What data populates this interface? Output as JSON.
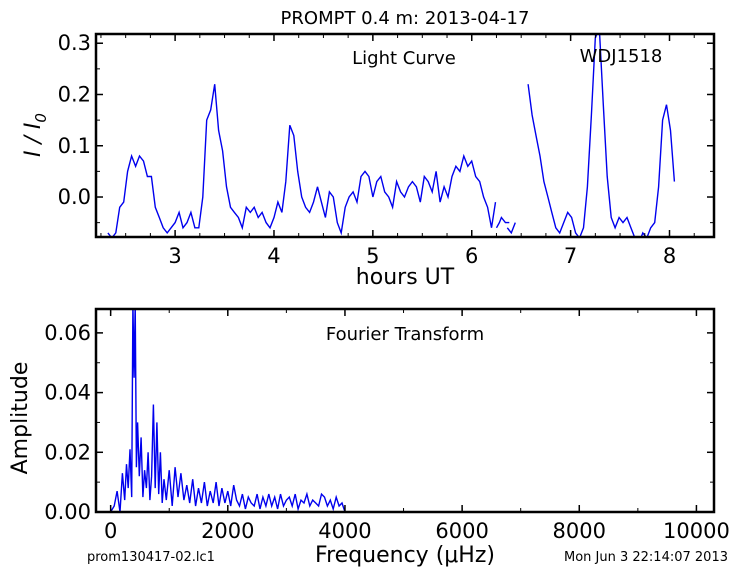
{
  "header": {
    "title": "PROMPT 0.4 m:  2013-04-17"
  },
  "footer": {
    "left": "prom130417-02.lc1",
    "right": "Mon Jun  3 22:14:07 2013"
  },
  "chart_data": [
    {
      "type": "line",
      "annotation": "Light Curve",
      "target": "WDJ1518",
      "xlabel": "hours UT",
      "ylabel": "I / I",
      "ylabel_sub": "0",
      "xlim": [
        2.2,
        8.45
      ],
      "ylim": [
        -0.078,
        0.318
      ],
      "xticks": [
        3,
        4,
        5,
        6,
        7,
        8
      ],
      "yticks": [
        0.0,
        0.1,
        0.2,
        0.3
      ],
      "ytick_labels": [
        "0.0",
        "0.1",
        "0.2",
        "0.3"
      ],
      "color": "#0000ee",
      "series": [
        {
          "x": [
            2.32,
            2.36,
            2.4,
            2.44,
            2.48,
            2.52,
            2.56,
            2.6,
            2.64,
            2.68,
            2.72,
            2.76,
            2.8,
            2.84,
            2.88,
            2.92,
            2.96,
            3.0,
            3.04,
            3.08,
            3.12,
            3.16,
            3.2,
            3.24,
            3.28,
            3.32,
            3.36,
            3.4,
            3.44,
            3.48,
            3.52,
            3.56,
            3.6,
            3.64,
            3.68,
            3.72,
            3.76,
            3.8,
            3.84,
            3.88,
            3.92,
            3.96,
            4.0,
            4.04,
            4.08,
            4.12,
            4.16,
            4.2,
            4.24,
            4.28,
            4.32,
            4.36,
            4.4,
            4.44,
            4.48,
            4.52,
            4.56,
            4.6,
            4.64,
            4.68,
            4.72,
            4.76,
            4.8,
            4.84,
            4.88,
            4.92,
            4.96,
            5.0,
            5.04,
            5.08,
            5.12,
            5.16,
            5.2,
            5.24,
            5.28,
            5.32,
            5.36,
            5.4,
            5.44,
            5.48,
            5.52,
            5.56,
            5.6,
            5.64,
            5.68,
            5.72,
            5.76,
            5.8,
            5.84,
            5.88,
            5.92,
            5.96,
            6.0,
            6.04,
            6.08,
            6.12,
            6.16,
            6.2,
            6.24
          ],
          "y": [
            -0.07,
            -0.08,
            -0.07,
            -0.02,
            -0.01,
            0.05,
            0.08,
            0.06,
            0.08,
            0.07,
            0.04,
            0.04,
            -0.02,
            -0.04,
            -0.06,
            -0.07,
            -0.06,
            -0.05,
            -0.03,
            -0.06,
            -0.05,
            -0.03,
            -0.06,
            -0.06,
            0.0,
            0.15,
            0.17,
            0.22,
            0.13,
            0.09,
            0.02,
            -0.02,
            -0.03,
            -0.04,
            -0.06,
            -0.02,
            -0.03,
            -0.02,
            -0.04,
            -0.03,
            -0.05,
            -0.06,
            -0.04,
            -0.01,
            -0.03,
            0.03,
            0.14,
            0.12,
            0.05,
            0.0,
            -0.02,
            -0.03,
            -0.01,
            0.02,
            -0.01,
            -0.04,
            0.01,
            0.0,
            -0.05,
            -0.07,
            -0.02,
            0.0,
            0.01,
            -0.01,
            0.04,
            0.05,
            0.04,
            0.0,
            0.03,
            0.04,
            0.01,
            0.0,
            -0.02,
            0.03,
            0.01,
            0.0,
            0.02,
            0.03,
            0.02,
            -0.01,
            0.04,
            0.03,
            0.01,
            0.05,
            -0.01,
            0.02,
            0.0,
            0.04,
            0.06,
            0.05,
            0.08,
            0.06,
            0.07,
            0.04,
            0.03,
            0.0,
            -0.02,
            -0.06,
            -0.01
          ]
        },
        {
          "x": [
            6.25,
            6.28,
            6.3,
            6.34,
            6.38
          ],
          "y": [
            -0.06,
            -0.05,
            -0.04,
            -0.05,
            -0.05
          ]
        },
        {
          "x": [
            6.36,
            6.4,
            6.44
          ],
          "y": [
            -0.06,
            -0.07,
            -0.05
          ]
        },
        {
          "x": [
            6.57,
            6.61,
            6.65,
            6.69,
            6.73,
            6.77,
            6.81,
            6.85,
            6.89,
            6.93,
            6.97,
            7.01,
            7.05,
            7.09,
            7.13,
            7.17,
            7.21,
            7.25,
            7.29,
            7.33,
            7.37,
            7.41,
            7.45,
            7.49,
            7.53,
            7.57,
            7.61,
            7.65,
            7.69,
            7.73,
            7.77,
            7.81,
            7.85,
            7.89,
            7.93,
            7.97,
            8.01,
            8.05
          ],
          "y": [
            0.22,
            0.16,
            0.12,
            0.08,
            0.03,
            0.0,
            -0.03,
            -0.06,
            -0.07,
            -0.05,
            -0.03,
            -0.04,
            -0.07,
            -0.08,
            -0.06,
            0.02,
            0.16,
            0.31,
            0.33,
            0.18,
            0.04,
            -0.04,
            -0.06,
            -0.04,
            -0.05,
            -0.04,
            -0.06,
            -0.08,
            -0.09,
            -0.07,
            -0.08,
            -0.06,
            -0.05,
            0.02,
            0.15,
            0.18,
            0.13,
            0.03
          ]
        }
      ]
    },
    {
      "type": "line",
      "annotation": "Fourier Transform",
      "xlabel": "Frequency (μHz)",
      "ylabel": "Amplitude",
      "xlim": [
        -250,
        10300
      ],
      "ylim": [
        0,
        0.068
      ],
      "xticks": [
        0,
        2000,
        4000,
        6000,
        8000,
        10000
      ],
      "yticks": [
        0.0,
        0.02,
        0.04,
        0.06
      ],
      "ytick_labels": [
        "0.00",
        "0.02",
        "0.04",
        "0.06"
      ],
      "color": "#0000ee",
      "series": [
        {
          "x": [
            0,
            60,
            110,
            160,
            200,
            240,
            270,
            300,
            330,
            360,
            380,
            400,
            420,
            440,
            460,
            490,
            520,
            550,
            580,
            610,
            640,
            670,
            700,
            730,
            760,
            790,
            820,
            850,
            880,
            910,
            950,
            1000,
            1050,
            1100,
            1150,
            1200,
            1250,
            1300,
            1350,
            1400,
            1450,
            1500,
            1550,
            1600,
            1650,
            1700,
            1750,
            1800,
            1850,
            1900,
            1950,
            2000,
            2050,
            2100,
            2150,
            2200,
            2250,
            2300,
            2350,
            2400,
            2450,
            2500,
            2550,
            2600,
            2650,
            2700,
            2750,
            2800,
            2850,
            2900,
            2950,
            3000,
            3050,
            3100,
            3150,
            3200,
            3250,
            3300,
            3350,
            3400,
            3450,
            3500,
            3550,
            3600,
            3650,
            3700,
            3750,
            3800,
            3850,
            3900,
            3950,
            4000
          ],
          "y": [
            0.0,
            0.002,
            0.007,
            0.0,
            0.013,
            0.004,
            0.016,
            0.008,
            0.021,
            0.005,
            0.07,
            0.045,
            0.07,
            0.015,
            0.03,
            0.012,
            0.025,
            0.005,
            0.014,
            0.008,
            0.02,
            0.004,
            0.012,
            0.036,
            0.008,
            0.03,
            0.006,
            0.02,
            0.003,
            0.011,
            0.004,
            0.014,
            0.002,
            0.015,
            0.005,
            0.013,
            0.004,
            0.009,
            0.003,
            0.011,
            0.002,
            0.008,
            0.003,
            0.01,
            0.002,
            0.007,
            0.003,
            0.01,
            0.002,
            0.008,
            0.003,
            0.007,
            0.002,
            0.009,
            0.004,
            0.002,
            0.006,
            0.001,
            0.005,
            0.003,
            0.002,
            0.006,
            0.001,
            0.005,
            0.002,
            0.006,
            0.002,
            0.005,
            0.001,
            0.006,
            0.002,
            0.004,
            0.005,
            0.002,
            0.006,
            0.001,
            0.004,
            0.003,
            0.006,
            0.002,
            0.004,
            0.003,
            0.002,
            0.006,
            0.005,
            0.002,
            0.004,
            0.001,
            0.005,
            0.002,
            0.003,
            0.0
          ]
        }
      ]
    }
  ]
}
